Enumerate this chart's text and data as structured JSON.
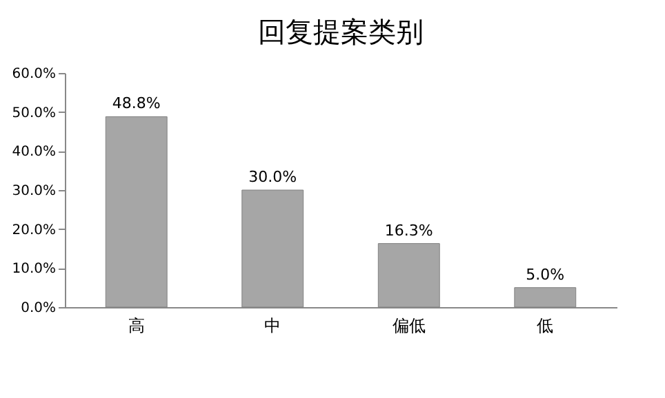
{
  "chart_data": {
    "type": "bar",
    "title": "回复提案类别",
    "categories": [
      "高",
      "中",
      "偏低",
      "低"
    ],
    "values": [
      48.8,
      30.0,
      16.3,
      5.0
    ],
    "value_labels": [
      "48.8%",
      "30.0%",
      "16.3%",
      "5.0%"
    ],
    "color": "#a6a6a6",
    "ylim": [
      0,
      60
    ],
    "yticks": [
      {
        "value": 0,
        "label": "0.0%"
      },
      {
        "value": 10,
        "label": "10.0%"
      },
      {
        "value": 20,
        "label": "20.0%"
      },
      {
        "value": 30,
        "label": "30.0%"
      },
      {
        "value": 40,
        "label": "40.0%"
      },
      {
        "value": 50,
        "label": "50.0%"
      },
      {
        "value": 60,
        "label": "60.0%"
      }
    ],
    "grid": false
  }
}
